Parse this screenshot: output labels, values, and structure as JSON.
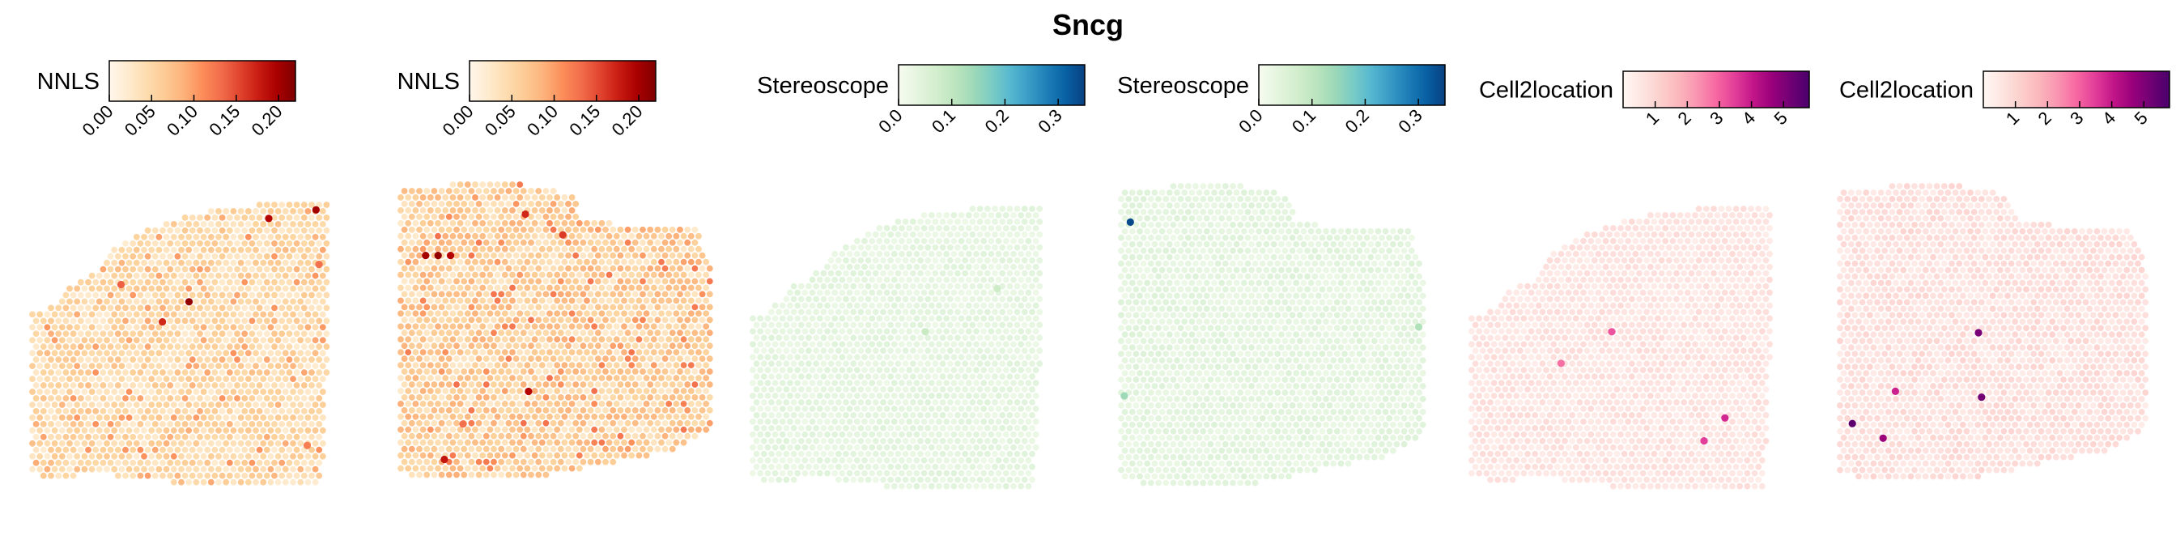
{
  "title": "Sncg",
  "chart_data": [
    {
      "type": "heatmap",
      "legend": {
        "label": "NNLS",
        "colormap": "OrRd",
        "range": [
          0,
          0.22
        ],
        "ticks": [
          "0.00",
          "0.05",
          "0.10",
          "0.15",
          "0.20"
        ],
        "tick_values": [
          0,
          0.05,
          0.1,
          0.15,
          0.2
        ]
      },
      "section": "sagittal-posterior",
      "hotspots": [
        {
          "x": 0.8,
          "y": 0.07,
          "value": 0.19
        },
        {
          "x": 0.96,
          "y": 0.04,
          "value": 0.2
        },
        {
          "x": 0.53,
          "y": 0.36,
          "value": 0.21
        },
        {
          "x": 0.44,
          "y": 0.43,
          "value": 0.17
        },
        {
          "x": 0.3,
          "y": 0.3,
          "value": 0.14
        },
        {
          "x": 0.93,
          "y": 0.86,
          "value": 0.12
        },
        {
          "x": 0.97,
          "y": 0.23,
          "value": 0.13
        }
      ]
    },
    {
      "type": "heatmap",
      "legend": {
        "label": "NNLS",
        "colormap": "OrRd",
        "range": [
          0,
          0.22
        ],
        "ticks": [
          "0.00",
          "0.05",
          "0.10",
          "0.15",
          "0.20"
        ],
        "tick_values": [
          0,
          0.05,
          0.1,
          0.15,
          0.2
        ]
      },
      "section": "sagittal-anterior",
      "hotspots": [
        {
          "x": 0.08,
          "y": 0.24,
          "value": 0.2
        },
        {
          "x": 0.12,
          "y": 0.24,
          "value": 0.21
        },
        {
          "x": 0.16,
          "y": 0.24,
          "value": 0.19
        },
        {
          "x": 0.4,
          "y": 0.1,
          "value": 0.17
        },
        {
          "x": 0.52,
          "y": 0.17,
          "value": 0.16
        },
        {
          "x": 0.41,
          "y": 0.7,
          "value": 0.19
        },
        {
          "x": 0.14,
          "y": 0.93,
          "value": 0.18
        },
        {
          "x": 0.2,
          "y": 0.81,
          "value": 0.13
        }
      ]
    },
    {
      "type": "heatmap",
      "legend": {
        "label": "Stereoscope",
        "colormap": "GnBu",
        "range": [
          0,
          0.35
        ],
        "ticks": [
          "0.0",
          "0.1",
          "0.2",
          "0.3"
        ],
        "tick_values": [
          0,
          0.1,
          0.2,
          0.3
        ]
      },
      "section": "sagittal-posterior",
      "hotspots": [
        {
          "x": 0.6,
          "y": 0.45,
          "value": 0.09
        },
        {
          "x": 0.85,
          "y": 0.3,
          "value": 0.08
        }
      ]
    },
    {
      "type": "heatmap",
      "legend": {
        "label": "Stereoscope",
        "colormap": "GnBu",
        "range": [
          0,
          0.35
        ],
        "ticks": [
          "0.0",
          "0.1",
          "0.2",
          "0.3"
        ],
        "tick_values": [
          0,
          0.1,
          0.2,
          0.3
        ]
      },
      "section": "sagittal-anterior",
      "hotspots": [
        {
          "x": 0.03,
          "y": 0.12,
          "value": 0.34
        },
        {
          "x": 0.01,
          "y": 0.7,
          "value": 0.14
        },
        {
          "x": 0.98,
          "y": 0.47,
          "value": 0.12
        }
      ]
    },
    {
      "type": "heatmap",
      "legend": {
        "label": "Cell2location",
        "colormap": "RdPu",
        "range": [
          0,
          5.8
        ],
        "ticks": [
          "1",
          "2",
          "3",
          "4",
          "5"
        ],
        "tick_values": [
          1,
          2,
          3,
          4,
          5
        ]
      },
      "section": "sagittal-posterior",
      "hotspots": [
        {
          "x": 0.47,
          "y": 0.45,
          "value": 3.2
        },
        {
          "x": 0.85,
          "y": 0.75,
          "value": 3.8
        },
        {
          "x": 0.78,
          "y": 0.83,
          "value": 3.5
        },
        {
          "x": 0.3,
          "y": 0.56,
          "value": 2.8
        }
      ]
    },
    {
      "type": "heatmap",
      "legend": {
        "label": "Cell2location",
        "colormap": "RdPu",
        "range": [
          0,
          5.8
        ],
        "ticks": [
          "1",
          "2",
          "3",
          "4",
          "5"
        ],
        "tick_values": [
          1,
          2,
          3,
          4,
          5
        ]
      },
      "section": "sagittal-anterior",
      "hotspots": [
        {
          "x": 0.45,
          "y": 0.5,
          "value": 5.1
        },
        {
          "x": 0.46,
          "y": 0.72,
          "value": 5.2
        },
        {
          "x": 0.04,
          "y": 0.81,
          "value": 5.5
        },
        {
          "x": 0.14,
          "y": 0.86,
          "value": 4.6
        },
        {
          "x": 0.18,
          "y": 0.7,
          "value": 3.9
        }
      ]
    }
  ]
}
